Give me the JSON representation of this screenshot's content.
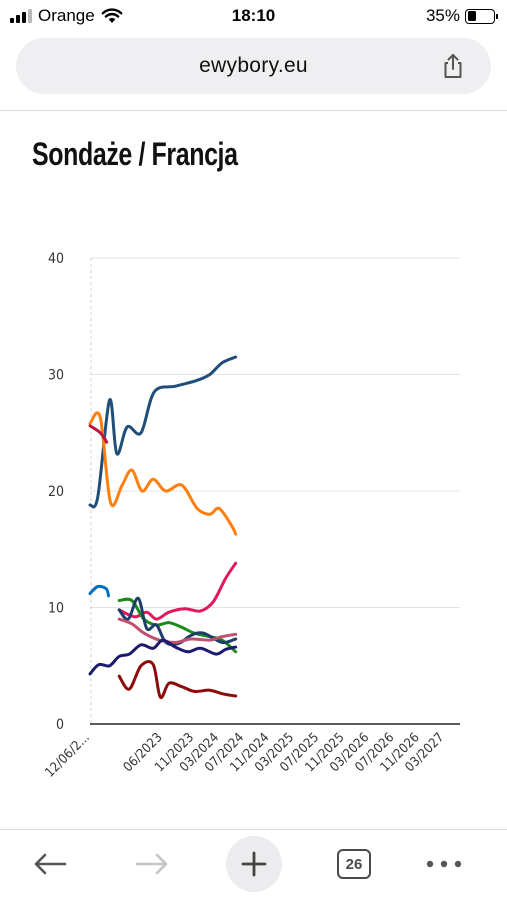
{
  "status": {
    "carrier": "Orange",
    "time": "18:10",
    "battery": "35%",
    "battery_level": 0.35
  },
  "browser": {
    "url": "ewybory.eu",
    "tab_count": "26",
    "icons": {
      "share": "share-icon",
      "back": "arrow-left-icon",
      "forward": "arrow-right-icon",
      "new_tab": "plus-icon",
      "tabs": "tabs-icon",
      "more": "ellipsis-icon"
    }
  },
  "page": {
    "title": "Sondaże / Francja"
  },
  "chart_data": {
    "type": "line",
    "title": "",
    "xlabel": "",
    "ylabel": "",
    "ylim": [
      0,
      40
    ],
    "yticks": [
      0,
      10,
      20,
      30,
      40
    ],
    "xlim": [
      "2022-06-12",
      "2027-05-15"
    ],
    "grid": true,
    "x_tick_labels": [
      {
        "date": "2022-06-12",
        "label": "12/06/2..."
      },
      {
        "date": "2023-06-01",
        "label": "06/2023"
      },
      {
        "date": "2023-11-01",
        "label": "11/2023"
      },
      {
        "date": "2024-03-01",
        "label": "03/2024"
      },
      {
        "date": "2024-07-01",
        "label": "07/2024"
      },
      {
        "date": "2024-11-01",
        "label": "11/2024"
      },
      {
        "date": "2025-03-01",
        "label": "03/2025"
      },
      {
        "date": "2025-07-01",
        "label": "07/2025"
      },
      {
        "date": "2025-11-01",
        "label": "11/2025"
      },
      {
        "date": "2026-03-01",
        "label": "03/2026"
      },
      {
        "date": "2026-07-01",
        "label": "07/2026"
      },
      {
        "date": "2026-11-01",
        "label": "11/2026"
      },
      {
        "date": "2027-03-01",
        "label": "03/2027"
      }
    ],
    "series": [
      {
        "color": "#1f4e79",
        "points": [
          [
            "2022-06-12",
            18.8
          ],
          [
            "2022-07-20",
            19.5
          ],
          [
            "2022-09-15",
            27.8
          ],
          [
            "2022-10-20",
            23.2
          ],
          [
            "2022-12-10",
            25.5
          ],
          [
            "2023-02-15",
            25.0
          ],
          [
            "2023-04-20",
            28.5
          ],
          [
            "2023-08-01",
            29.0
          ],
          [
            "2023-11-15",
            29.5
          ],
          [
            "2024-01-15",
            30.0
          ],
          [
            "2024-03-15",
            31.0
          ],
          [
            "2024-05-20",
            31.5
          ]
        ]
      },
      {
        "color": "#ff7f0e",
        "points": [
          [
            "2022-06-12",
            25.8
          ],
          [
            "2022-08-01",
            26.3
          ],
          [
            "2022-09-20",
            19.0
          ],
          [
            "2022-11-15",
            20.5
          ],
          [
            "2023-01-01",
            21.8
          ],
          [
            "2023-02-20",
            20.0
          ],
          [
            "2023-04-15",
            21.0
          ],
          [
            "2023-06-15",
            20.0
          ],
          [
            "2023-09-01",
            20.5
          ],
          [
            "2023-11-15",
            18.5
          ],
          [
            "2024-01-15",
            18.0
          ],
          [
            "2024-03-01",
            18.5
          ],
          [
            "2024-05-01",
            17.0
          ],
          [
            "2024-05-20",
            16.3
          ]
        ]
      },
      {
        "color": "#c0143c",
        "points": [
          [
            "2022-06-12",
            25.6
          ],
          [
            "2022-08-01",
            25.0
          ],
          [
            "2022-09-01",
            24.2
          ]
        ]
      },
      {
        "color": "#0070c0",
        "points": [
          [
            "2022-06-12",
            11.2
          ],
          [
            "2022-07-20",
            11.8
          ],
          [
            "2022-08-30",
            11.6
          ],
          [
            "2022-09-10",
            11.0
          ]
        ]
      },
      {
        "color": "#e0195a",
        "points": [
          [
            "2022-11-01",
            9.8
          ],
          [
            "2023-01-15",
            9.2
          ],
          [
            "2023-03-15",
            9.6
          ],
          [
            "2023-05-01",
            9.0
          ],
          [
            "2023-07-01",
            9.6
          ],
          [
            "2023-09-15",
            9.9
          ],
          [
            "2023-12-01",
            9.7
          ],
          [
            "2024-02-01",
            10.5
          ],
          [
            "2024-04-01",
            12.5
          ],
          [
            "2024-05-20",
            13.8
          ]
        ]
      },
      {
        "color": "#1a8a1a",
        "points": [
          [
            "2022-11-01",
            10.6
          ],
          [
            "2023-01-01",
            10.6
          ],
          [
            "2023-03-01",
            9.0
          ],
          [
            "2023-05-01",
            8.5
          ],
          [
            "2023-07-01",
            8.7
          ],
          [
            "2023-09-01",
            8.3
          ],
          [
            "2023-11-01",
            7.8
          ],
          [
            "2024-01-15",
            7.5
          ],
          [
            "2024-03-15",
            7.2
          ],
          [
            "2024-05-20",
            6.2
          ]
        ]
      },
      {
        "color": "#1f3d6b",
        "points": [
          [
            "2022-11-01",
            9.8
          ],
          [
            "2022-12-15",
            9.0
          ],
          [
            "2023-02-01",
            10.8
          ],
          [
            "2023-03-15",
            8.2
          ],
          [
            "2023-05-01",
            8.5
          ],
          [
            "2023-06-15",
            7.0
          ],
          [
            "2023-08-15",
            6.9
          ],
          [
            "2023-10-15",
            7.6
          ],
          [
            "2023-12-15",
            7.8
          ],
          [
            "2024-03-15",
            7.0
          ],
          [
            "2024-05-20",
            7.3
          ]
        ]
      },
      {
        "color": "#c0506e",
        "points": [
          [
            "2022-11-01",
            9.0
          ],
          [
            "2023-01-01",
            8.6
          ],
          [
            "2023-03-01",
            7.8
          ],
          [
            "2023-05-15",
            7.2
          ],
          [
            "2023-08-01",
            7.0
          ],
          [
            "2023-10-15",
            7.3
          ],
          [
            "2024-01-15",
            7.2
          ],
          [
            "2024-03-15",
            7.5
          ],
          [
            "2024-05-20",
            7.7
          ]
        ]
      },
      {
        "color": "#1a1a6e",
        "points": [
          [
            "2022-06-12",
            4.3
          ],
          [
            "2022-07-25",
            5.1
          ],
          [
            "2022-09-15",
            5.0
          ],
          [
            "2022-11-01",
            5.8
          ],
          [
            "2022-12-20",
            6.0
          ],
          [
            "2023-02-15",
            6.8
          ],
          [
            "2023-04-15",
            6.5
          ],
          [
            "2023-06-01",
            7.2
          ],
          [
            "2023-08-01",
            6.6
          ],
          [
            "2023-10-01",
            6.2
          ],
          [
            "2023-12-01",
            6.5
          ],
          [
            "2024-02-15",
            6.0
          ],
          [
            "2024-04-01",
            6.4
          ],
          [
            "2024-05-20",
            6.6
          ]
        ]
      },
      {
        "color": "#8b0a0a",
        "points": [
          [
            "2022-11-01",
            4.1
          ],
          [
            "2022-12-20",
            3.0
          ],
          [
            "2023-02-15",
            5.0
          ],
          [
            "2023-04-15",
            5.1
          ],
          [
            "2023-05-20",
            2.3
          ],
          [
            "2023-07-01",
            3.5
          ],
          [
            "2023-09-01",
            3.2
          ],
          [
            "2023-11-01",
            2.8
          ],
          [
            "2024-01-15",
            2.9
          ],
          [
            "2024-03-15",
            2.6
          ],
          [
            "2024-05-20",
            2.4
          ]
        ]
      }
    ]
  }
}
